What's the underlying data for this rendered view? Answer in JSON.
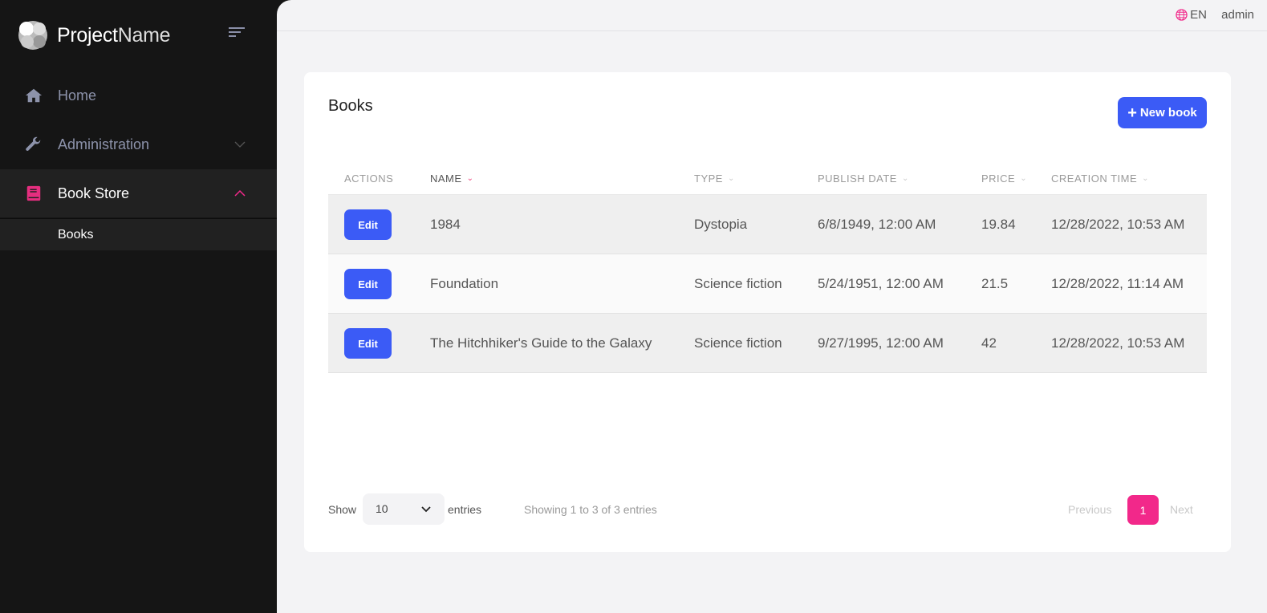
{
  "brand": {
    "name_bold": "Project",
    "name_light": "Name"
  },
  "sidebar": {
    "items": [
      {
        "label": "Home",
        "icon": "home-icon"
      },
      {
        "label": "Administration",
        "icon": "wrench-icon"
      },
      {
        "label": "Book Store",
        "icon": "book-icon",
        "sub": [
          {
            "label": "Books"
          }
        ]
      }
    ]
  },
  "topbar": {
    "language": "EN",
    "user": "admin"
  },
  "page": {
    "title": "Books",
    "new_button": "New book"
  },
  "table": {
    "columns": [
      "ACTIONS",
      "NAME",
      "TYPE",
      "PUBLISH DATE",
      "PRICE",
      "CREATION TIME"
    ],
    "edit_label": "Edit",
    "rows": [
      {
        "name": "1984",
        "type": "Dystopia",
        "publish": "6/8/1949, 12:00 AM",
        "price": "19.84",
        "created": "12/28/2022, 10:53 AM"
      },
      {
        "name": "Foundation",
        "type": "Science fiction",
        "publish": "5/24/1951, 12:00 AM",
        "price": "21.5",
        "created": "12/28/2022, 11:14 AM"
      },
      {
        "name": "The Hitchhiker's Guide to the Galaxy",
        "type": "Science fiction",
        "publish": "9/27/1995, 12:00 AM",
        "price": "42",
        "created": "12/28/2022, 10:53 AM"
      }
    ]
  },
  "footer": {
    "show": "Show",
    "page_size": "10",
    "entries": "entries",
    "info": "Showing 1 to 3 of 3 entries",
    "previous": "Previous",
    "page": "1",
    "next": "Next"
  },
  "colors": {
    "accent": "#f2288a",
    "primary": "#3b5bf6",
    "sidebar": "#151515"
  }
}
